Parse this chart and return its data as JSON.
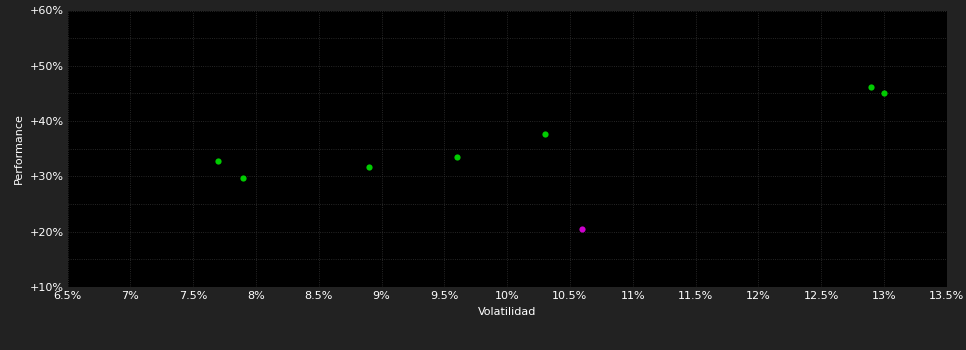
{
  "background_color": "#222222",
  "plot_bg_color": "#000000",
  "grid_color": "#333333",
  "text_color": "#ffffff",
  "xlabel": "Volatilidad",
  "ylabel": "Performance",
  "xlim": [
    0.065,
    0.135
  ],
  "ylim": [
    0.1,
    0.6
  ],
  "xticks": [
    0.065,
    0.07,
    0.075,
    0.08,
    0.085,
    0.09,
    0.095,
    0.1,
    0.105,
    0.11,
    0.115,
    0.12,
    0.125,
    0.13,
    0.135
  ],
  "yticks": [
    0.1,
    0.2,
    0.3,
    0.4,
    0.5,
    0.6
  ],
  "minor_yticks": [
    0.1,
    0.15,
    0.2,
    0.25,
    0.3,
    0.35,
    0.4,
    0.45,
    0.5,
    0.55,
    0.6
  ],
  "points_green": [
    [
      0.077,
      0.327
    ],
    [
      0.079,
      0.298
    ],
    [
      0.089,
      0.317
    ],
    [
      0.096,
      0.335
    ],
    [
      0.103,
      0.376
    ],
    [
      0.129,
      0.461
    ],
    [
      0.13,
      0.451
    ]
  ],
  "points_magenta": [
    [
      0.106,
      0.205
    ]
  ],
  "marker_size": 20,
  "green_color": "#00cc00",
  "magenta_color": "#cc00cc",
  "xlabel_fontsize": 8,
  "ylabel_fontsize": 8,
  "tick_fontsize": 8
}
